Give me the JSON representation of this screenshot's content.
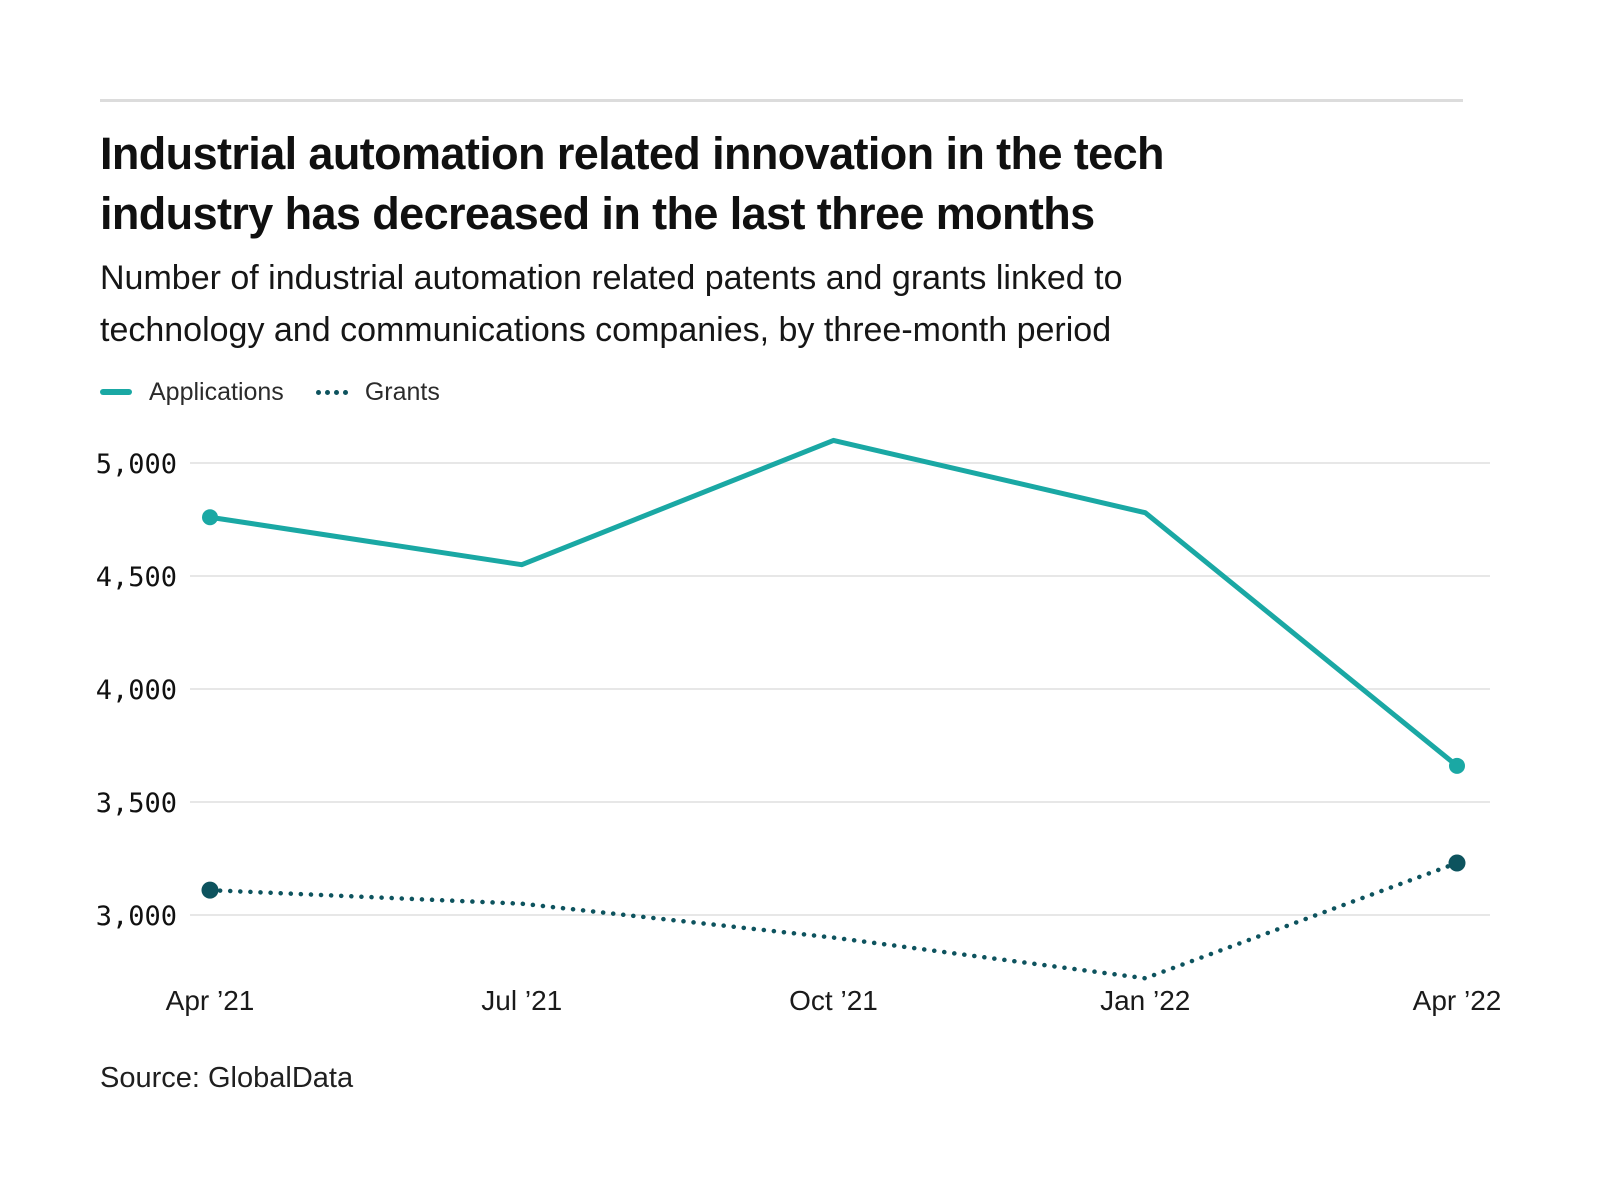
{
  "page": {
    "title_line1": "Industrial automation related innovation in the tech",
    "title_line2": "industry has decreased in the last three months",
    "subtitle_line1": "Number of industrial automation related patents and grants linked to",
    "subtitle_line2": "technology and communications companies, by three-month period",
    "source": "Source: GlobalData"
  },
  "legend": {
    "items": [
      {
        "label": "Applications",
        "style": "solid",
        "color": "#1aa8a4"
      },
      {
        "label": "Grants",
        "style": "dotted",
        "color": "#0d535e"
      }
    ]
  },
  "chart_data": {
    "type": "line",
    "title": "Industrial automation related innovation in the tech industry has decreased in the last three months",
    "subtitle": "Number of industrial automation related patents and grants linked to technology and communications companies, by three-month period",
    "categories": [
      "Apr ’21",
      "Jul ’21",
      "Oct ’21",
      "Jan ’22",
      "Apr ’22"
    ],
    "series": [
      {
        "name": "Applications",
        "style": "solid",
        "color": "#1aa8a4",
        "values": [
          4760,
          4550,
          5100,
          4780,
          3660
        ]
      },
      {
        "name": "Grants",
        "style": "dotted",
        "color": "#0d535e",
        "values": [
          3110,
          3050,
          2900,
          2720,
          3230
        ]
      }
    ],
    "yticks": [
      5000,
      4500,
      4000,
      3500,
      3000
    ],
    "ylim": [
      2600,
      5200
    ],
    "grid": "horizontal",
    "legend_position": "top-left",
    "gridline_color": "#e7e7e7",
    "source": "Source: GlobalData"
  }
}
